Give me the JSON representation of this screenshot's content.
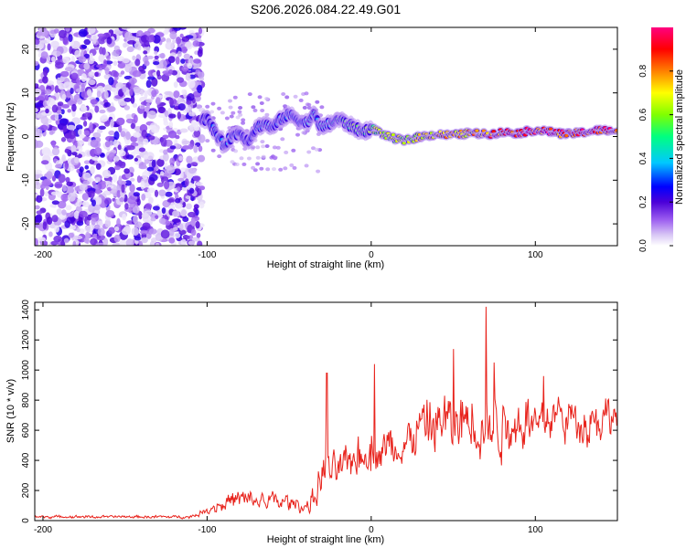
{
  "title": "S206.2026.084.22.49.G01",
  "chart_data": [
    {
      "type": "heatmap",
      "name": "spectrogram",
      "xlabel": "Height of straight line (km)",
      "ylabel": "Frequency (Hz)",
      "xlim": [
        -205,
        150
      ],
      "ylim": [
        -25,
        25
      ],
      "xticks": [
        -200,
        -100,
        0,
        100
      ],
      "yticks": [
        -20,
        -10,
        0,
        10,
        20
      ],
      "colorbar": {
        "label": "Normalized spectral amplitude",
        "range": [
          0,
          1
        ],
        "ticks": [
          0,
          0.2,
          0.4,
          0.6,
          0.8
        ],
        "colors": [
          "#ffffff",
          "#d8c6f5",
          "#9b5cf0",
          "#4b00d8",
          "#0000ff",
          "#00c8ff",
          "#00ff80",
          "#80ff00",
          "#ffff00",
          "#ff8000",
          "#ff0000",
          "#ff0080"
        ]
      },
      "ridge": {
        "description_points_x": [
          -100,
          -95,
          -90,
          -85,
          -80,
          -75,
          -70,
          -65,
          -60,
          -55,
          -50,
          -45,
          -40,
          -35,
          -30,
          -25,
          -20,
          -15,
          -10,
          -5,
          0,
          10,
          20,
          30,
          40,
          50,
          60,
          70,
          80,
          90,
          100,
          110,
          120,
          130,
          140,
          150
        ],
        "frequency_hz": [
          4,
          1,
          -2,
          0,
          1,
          -1,
          2,
          3,
          2,
          4,
          5,
          4,
          3,
          5,
          2,
          3,
          4,
          3,
          2,
          1,
          2,
          0,
          -1,
          0,
          0.5,
          0.3,
          0.8,
          0.5,
          1,
          0.8,
          1.5,
          1,
          0.5,
          1,
          1.5,
          1.2
        ],
        "amplitude": [
          0.25,
          0.3,
          0.35,
          0.3,
          0.3,
          0.25,
          0.3,
          0.35,
          0.3,
          0.3,
          0.35,
          0.3,
          0.35,
          0.4,
          0.4,
          0.45,
          0.5,
          0.5,
          0.55,
          0.55,
          0.6,
          0.6,
          0.65,
          0.7,
          0.7,
          0.75,
          0.75,
          0.8,
          0.85,
          0.9,
          0.9,
          0.9,
          0.85,
          0.9,
          0.85,
          0.9
        ]
      },
      "noise_region_x": [
        -205,
        -103
      ]
    },
    {
      "type": "line",
      "name": "snr",
      "xlabel": "Height of straight line (km)",
      "ylabel": "SNR (10 * v/v)",
      "xlim": [
        -205,
        150
      ],
      "ylim": [
        0,
        1450
      ],
      "xticks": [
        -200,
        -100,
        0,
        100
      ],
      "yticks": [
        0,
        200,
        400,
        600,
        800,
        1000,
        1200,
        1400
      ],
      "color": "#e8231c",
      "envelope_x": [
        -205,
        -110,
        -100,
        -90,
        -80,
        -70,
        -60,
        -50,
        -40,
        -35,
        -30,
        -28,
        -25,
        -20,
        -15,
        -10,
        -5,
        0,
        5,
        10,
        15,
        20,
        25,
        30,
        35,
        40,
        45,
        50,
        55,
        60,
        65,
        70,
        75,
        80,
        85,
        90,
        95,
        100,
        110,
        120,
        130,
        140,
        150
      ],
      "envelope_mean": [
        25,
        25,
        70,
        120,
        140,
        130,
        130,
        120,
        90,
        150,
        320,
        380,
        310,
        350,
        380,
        430,
        450,
        480,
        450,
        500,
        470,
        480,
        580,
        600,
        650,
        630,
        650,
        620,
        640,
        700,
        650,
        600,
        650,
        620,
        650,
        640,
        690,
        650,
        700,
        680,
        650,
        680,
        700
      ],
      "envelope_amp": [
        12,
        12,
        30,
        70,
        90,
        80,
        80,
        70,
        50,
        100,
        180,
        200,
        120,
        150,
        150,
        180,
        200,
        220,
        150,
        180,
        170,
        180,
        200,
        230,
        260,
        250,
        280,
        280,
        260,
        280,
        300,
        320,
        260,
        260,
        250,
        220,
        220,
        200,
        180,
        180,
        170,
        180,
        160
      ],
      "peaks": [
        {
          "x": 70,
          "y": 1420
        },
        {
          "x": 50,
          "y": 1140
        },
        {
          "x": 2,
          "y": 1040
        },
        {
          "x": -27,
          "y": 980
        },
        {
          "x": 105,
          "y": 960
        },
        {
          "x": 75,
          "y": 1050
        }
      ]
    }
  ]
}
